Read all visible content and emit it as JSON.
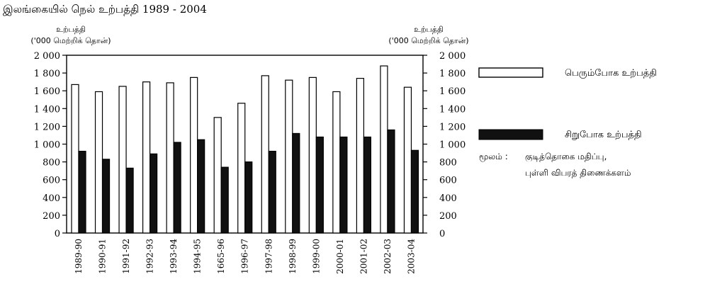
{
  "chart_data": {
    "type": "bar",
    "title": "இலங்கையில் நெல் உற்பத்தி 1989 - 2004",
    "ylabel_left": [
      "உற்பத்தி",
      "('000 மெற்றிக் தொன்)"
    ],
    "ylabel_right": [
      "உற்பத்தி",
      "('000 மெற்றிக் தொன்)"
    ],
    "ylim": [
      0,
      2000
    ],
    "yticks": [
      0,
      200,
      400,
      600,
      800,
      1000,
      1200,
      1400,
      1600,
      1800,
      2000
    ],
    "ytick_labels": [
      "0",
      "200",
      "400",
      "600",
      "800",
      "1 000",
      "1 200",
      "1 400",
      "1 600",
      "1 800",
      "2 000"
    ],
    "categories": [
      "1989-90",
      "1990-91",
      "1991-92",
      "1992-93",
      "1993-94",
      "1994-95",
      "1665-96",
      "1996-97",
      "1997-98",
      "1998-99",
      "1999-00",
      "2000-01",
      "2001-02",
      "2002-03",
      "2003-04"
    ],
    "series": [
      {
        "name": "பெரும்போக உற்பத்தி",
        "fill": "#ffffff",
        "values": [
          1670,
          1590,
          1650,
          1700,
          1690,
          1750,
          1300,
          1460,
          1770,
          1720,
          1750,
          1590,
          1740,
          1880,
          1640
        ]
      },
      {
        "name": "சிறுபோக உற்பத்தி",
        "fill": "#111111",
        "values": [
          920,
          830,
          730,
          890,
          1020,
          1050,
          740,
          800,
          920,
          1120,
          1080,
          1080,
          1080,
          1160,
          930
        ]
      }
    ],
    "source_label": "மூலம் :",
    "source_lines": [
      "குடித்தொகை மதிப்பு,",
      "புள்ளி விபரத் திணைக்களம்"
    ]
  }
}
